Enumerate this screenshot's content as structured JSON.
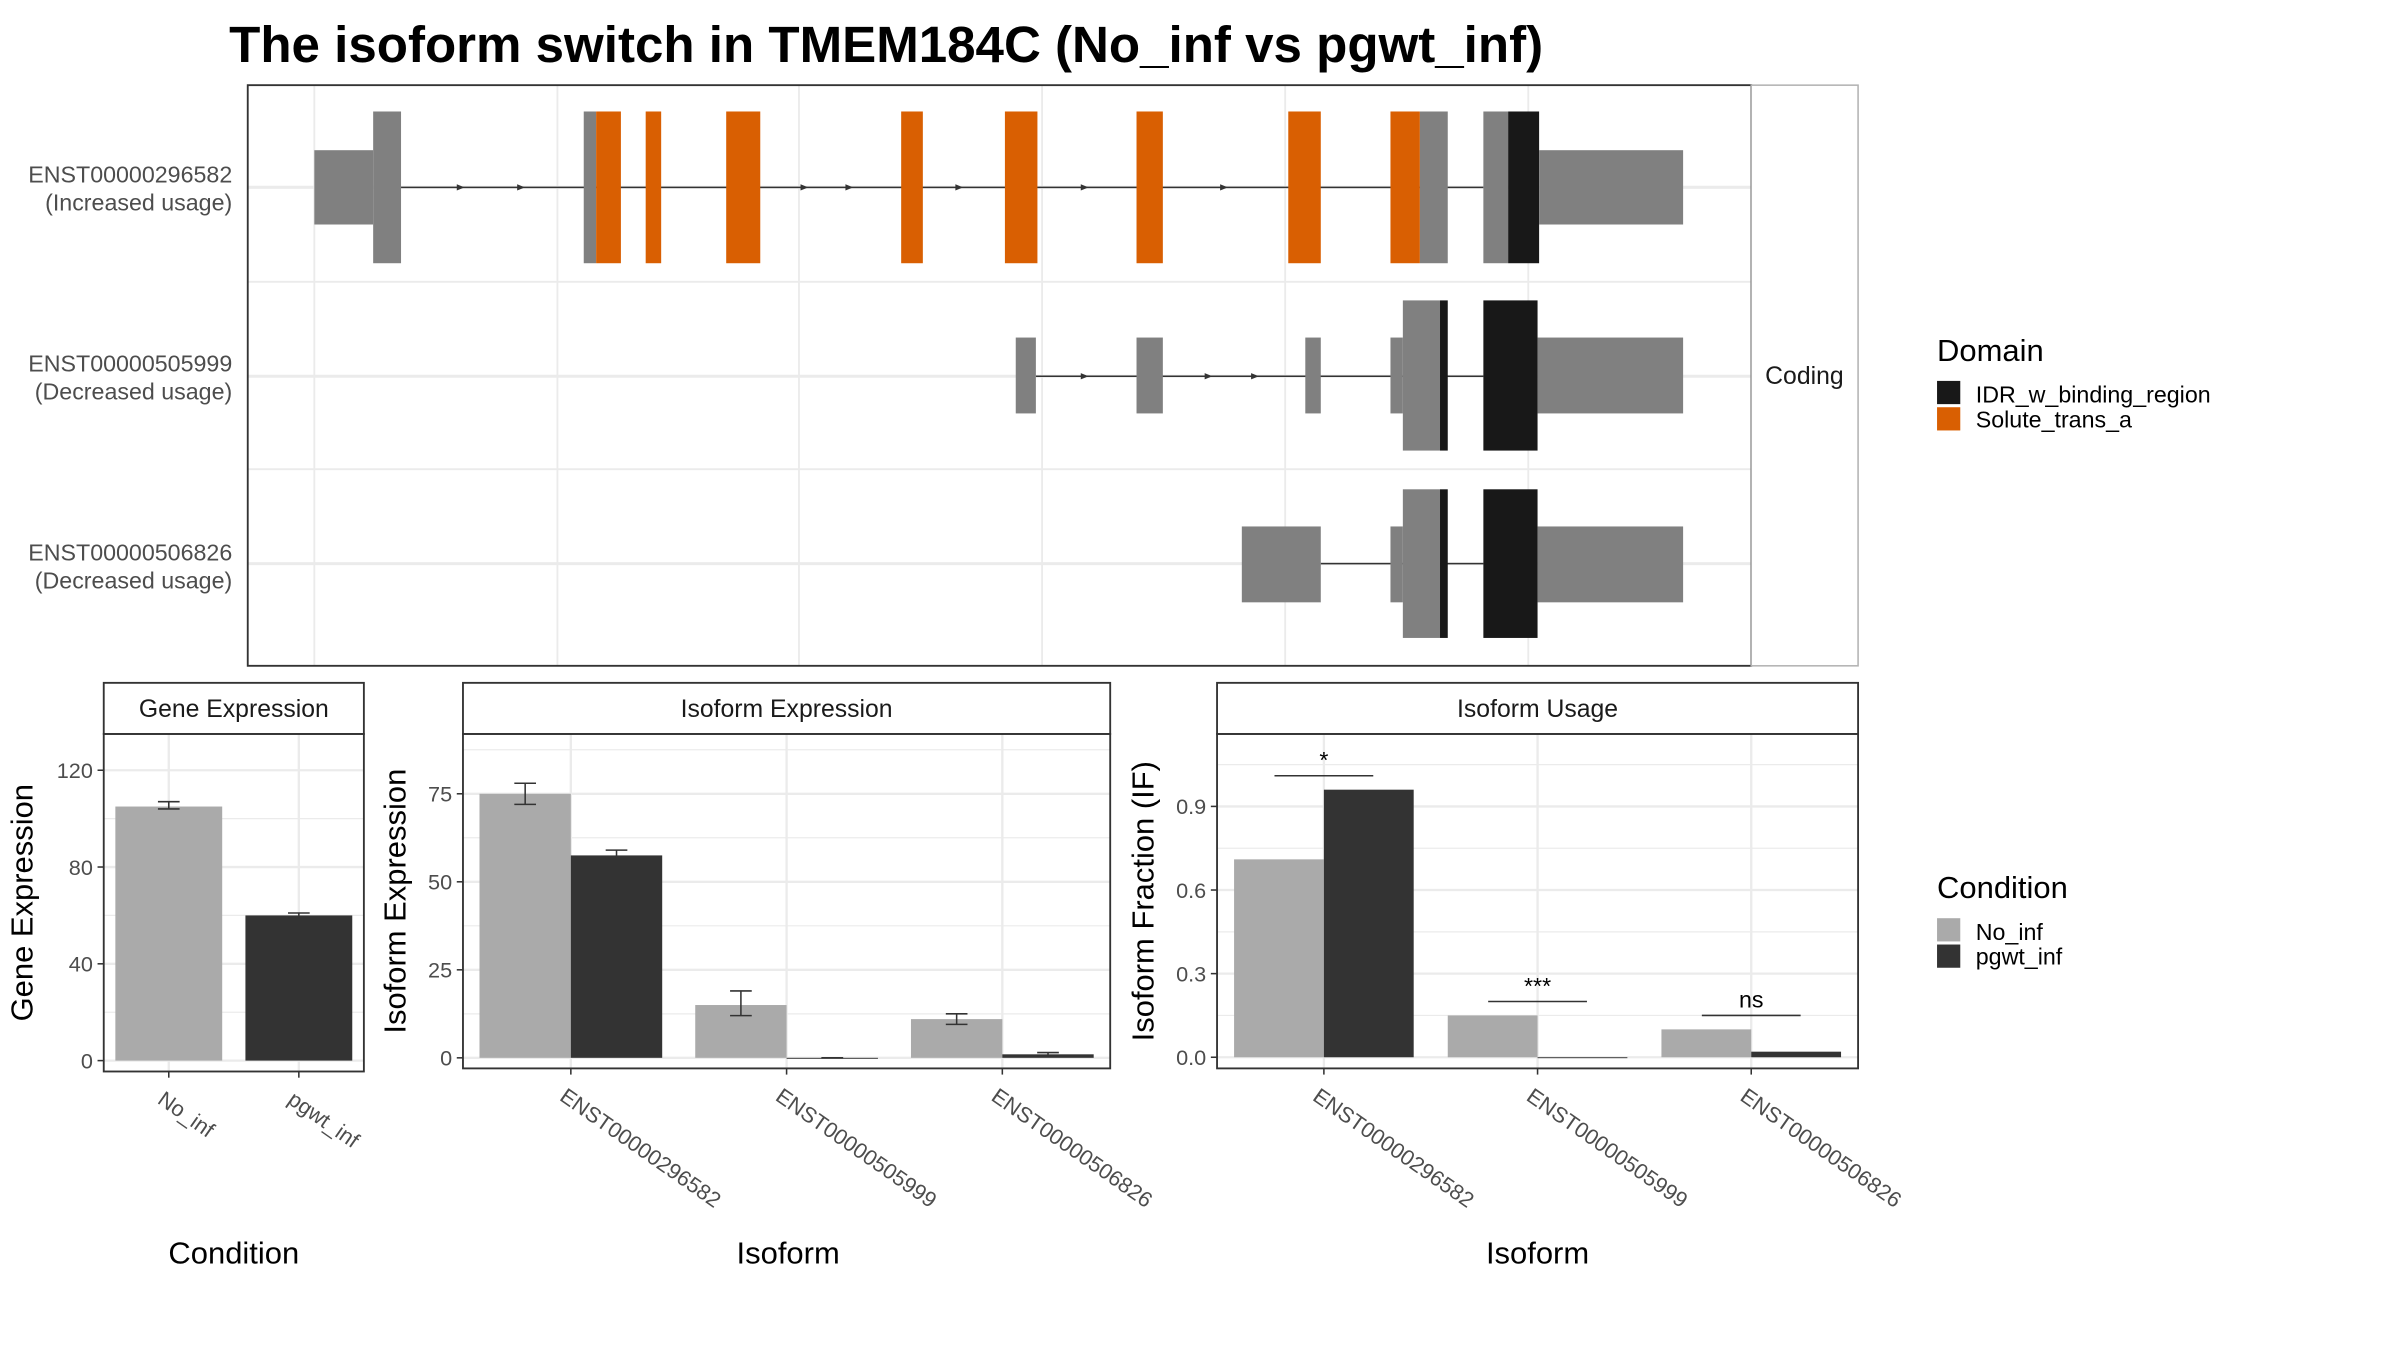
{
  "title": "The isoform switch in TMEM184C (No_inf vs pgwt_inf)",
  "colors": {
    "no_inf": "#aaaaaa",
    "pgwt_inf": "#333333",
    "exon": "#808080",
    "idr": "#181818",
    "solute": "#d95f02",
    "grid": "#ebebeb",
    "panel_border": "#333333",
    "strip_border": "#333333"
  },
  "transcript_panel": {
    "facet_label": "Coding",
    "isoforms": [
      {
        "id": "ENST00000296582",
        "usage": "(Increased usage)"
      },
      {
        "id": "ENST00000505999",
        "usage": "(Decreased usage)"
      },
      {
        "id": "ENST00000506826",
        "usage": "(Decreased usage)"
      }
    ]
  },
  "legends": {
    "domain": {
      "title": "Domain",
      "items": [
        "IDR_w_binding_region",
        "Solute_trans_a"
      ]
    },
    "condition": {
      "title": "Condition",
      "items": [
        "No_inf",
        "pgwt_inf"
      ]
    }
  },
  "chart_data": [
    {
      "type": "bar",
      "title": "Gene Expression",
      "xlabel": "Condition",
      "ylabel": "Gene Expression",
      "ylim": [
        -4.5,
        135
      ],
      "yticks": [
        0,
        40,
        80,
        120
      ],
      "categories": [
        "No_inf",
        "pgwt_inf"
      ],
      "values": [
        105,
        60
      ],
      "error_low": [
        104,
        59
      ],
      "error_high": [
        107,
        61
      ]
    },
    {
      "type": "bar",
      "title": "Isoform Expression",
      "xlabel": "Isoform",
      "ylabel": "Isoform Expression",
      "ylim": [
        -3,
        92
      ],
      "yticks": [
        0,
        25,
        50,
        75
      ],
      "categories": [
        "ENST00000296582",
        "ENST00000505999",
        "ENST00000506826"
      ],
      "series": [
        {
          "name": "No_inf",
          "values": [
            75,
            15,
            11
          ],
          "error_low": [
            72,
            12,
            9.5
          ],
          "error_high": [
            78,
            19,
            12.5
          ]
        },
        {
          "name": "pgwt_inf",
          "values": [
            57.5,
            0,
            1
          ],
          "error_low": [
            56.5,
            0,
            0.5
          ],
          "error_high": [
            59,
            0,
            1.5
          ]
        }
      ]
    },
    {
      "type": "bar",
      "title": "Isoform Usage",
      "xlabel": "Isoform",
      "ylabel": "Isoform Fraction (IF)",
      "ylim": [
        -0.04,
        1.16
      ],
      "yticks": [
        0.0,
        0.3,
        0.6,
        0.9
      ],
      "ytick_labels": [
        "0.0",
        "0.3",
        "0.6",
        "0.9"
      ],
      "categories": [
        "ENST00000296582",
        "ENST00000505999",
        "ENST00000506826"
      ],
      "series": [
        {
          "name": "No_inf",
          "values": [
            0.71,
            0.15,
            0.1
          ]
        },
        {
          "name": "pgwt_inf",
          "values": [
            0.96,
            0.0,
            0.02
          ]
        }
      ],
      "significance": [
        "*",
        "***",
        "ns"
      ]
    }
  ]
}
